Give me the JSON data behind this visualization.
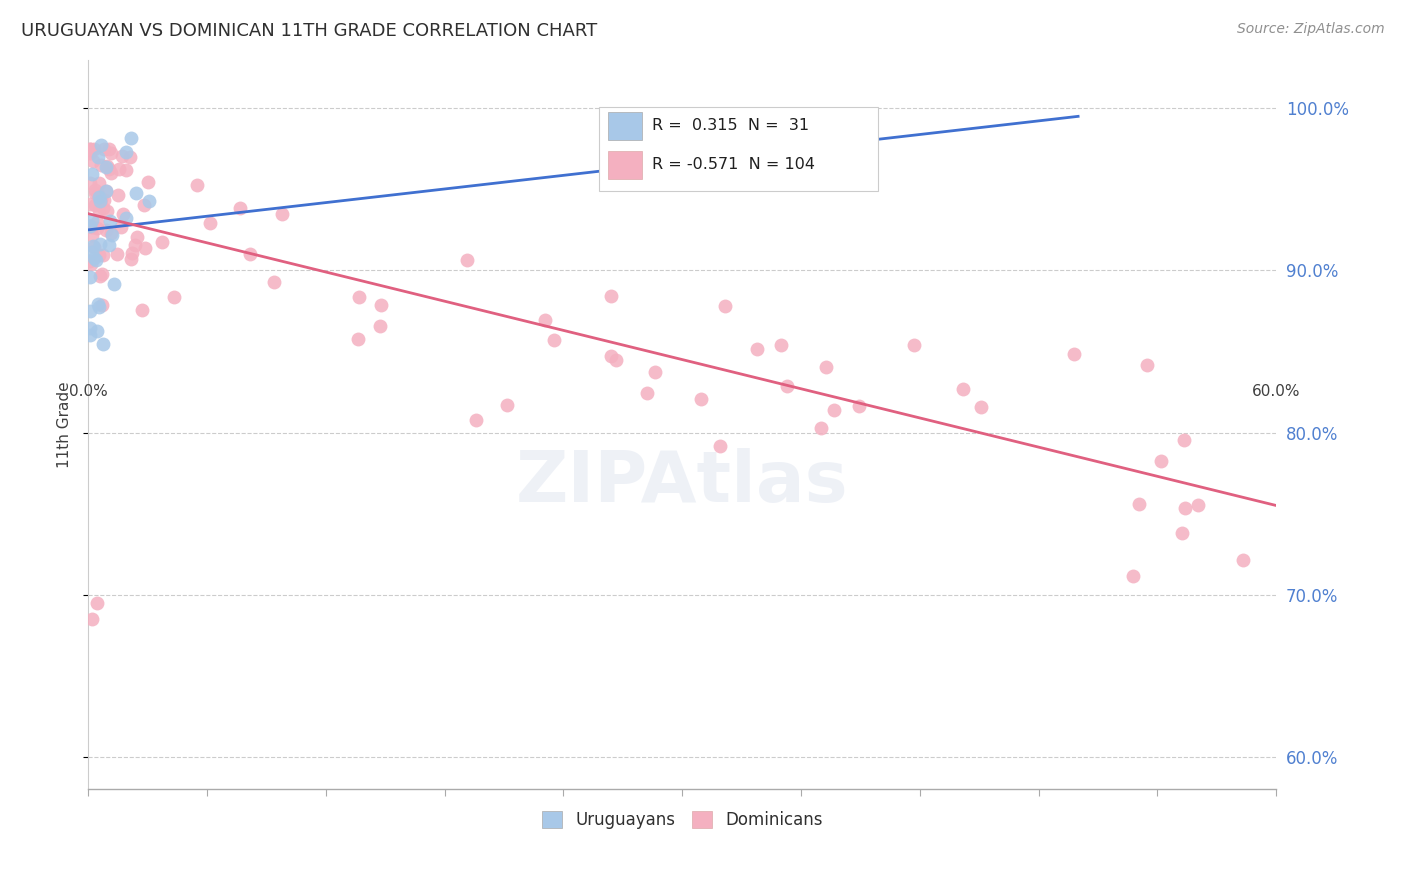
{
  "title": "URUGUAYAN VS DOMINICAN 11TH GRADE CORRELATION CHART",
  "source": "Source: ZipAtlas.com",
  "ylabel": "11th Grade",
  "right_yticks": [
    "60.0%",
    "70.0%",
    "80.0%",
    "90.0%",
    "100.0%"
  ],
  "right_ytick_vals": [
    0.6,
    0.7,
    0.8,
    0.9,
    1.0
  ],
  "legend_blue_label": "Uruguayans",
  "legend_pink_label": "Dominicans",
  "blue_R": 0.315,
  "blue_N": 31,
  "pink_R": -0.571,
  "pink_N": 104,
  "blue_color": "#a8c8e8",
  "pink_color": "#f4b0c0",
  "blue_line_color": "#4070d0",
  "pink_line_color": "#e06080",
  "title_color": "#303030",
  "source_color": "#909090",
  "right_label_color": "#5080d0",
  "background_color": "#ffffff",
  "xlim": [
    0.0,
    0.6
  ],
  "ylim": [
    0.58,
    1.03
  ],
  "blue_line_x": [
    0.0,
    0.5
  ],
  "blue_line_y": [
    0.925,
    0.995
  ],
  "pink_line_x": [
    0.0,
    0.6
  ],
  "pink_line_y": [
    0.935,
    0.755
  ]
}
